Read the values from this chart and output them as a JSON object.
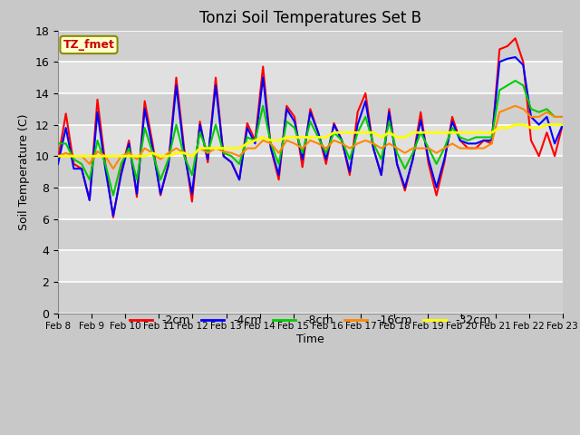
{
  "title": "Tonzi Soil Temperatures Set B",
  "xlabel": "Time",
  "ylabel": "Soil Temperature (C)",
  "ylim": [
    0,
    18
  ],
  "yticks": [
    0,
    2,
    4,
    6,
    8,
    10,
    12,
    14,
    16,
    18
  ],
  "x_labels": [
    "Feb 8",
    "Feb 9",
    "Feb 10",
    "Feb 11",
    "Feb 12",
    "Feb 13",
    "Feb 14",
    "Feb 15",
    "Feb 16",
    "Feb 17",
    "Feb 18",
    "Feb 19",
    "Feb 20",
    "Feb 21",
    "Feb 22",
    "Feb 23"
  ],
  "annotation_text": "TZ_fmet",
  "annotation_bg": "#ffffcc",
  "annotation_border": "#8b8b00",
  "annotation_color": "#cc0000",
  "outer_bg": "#c8c8c8",
  "plot_bg_upper": "#d8d8d8",
  "plot_bg_lower": "#e8e8e8",
  "grid_color": "#ffffff",
  "legend_bg": "#ffffff",
  "series": [
    {
      "label": "-2cm",
      "color": "#ff0000",
      "linewidth": 1.5,
      "y": [
        9.8,
        12.7,
        9.5,
        9.2,
        7.2,
        13.6,
        9.5,
        6.1,
        9.0,
        11.0,
        7.4,
        13.5,
        10.8,
        7.5,
        9.5,
        15.0,
        10.5,
        7.1,
        12.2,
        9.6,
        15.0,
        10.0,
        9.6,
        8.5,
        12.1,
        11.0,
        15.7,
        10.5,
        8.5,
        13.2,
        12.5,
        9.3,
        13.0,
        11.5,
        9.5,
        12.1,
        11.0,
        8.8,
        12.8,
        14.0,
        10.5,
        8.8,
        13.0,
        9.5,
        7.8,
        9.8,
        12.8,
        9.5,
        7.5,
        9.6,
        12.5,
        11.0,
        10.5,
        10.5,
        11.0,
        10.8,
        16.8,
        17.0,
        17.5,
        16.0,
        11.0,
        10.0,
        11.5,
        10.0,
        12.0
      ]
    },
    {
      "label": "-4cm",
      "color": "#0000ff",
      "linewidth": 1.5,
      "y": [
        9.5,
        11.8,
        9.2,
        9.2,
        7.2,
        12.8,
        9.2,
        6.2,
        8.8,
        10.8,
        7.6,
        13.0,
        10.5,
        7.6,
        9.4,
        14.5,
        10.2,
        7.6,
        12.0,
        9.8,
        14.5,
        10.0,
        9.6,
        8.5,
        11.8,
        10.8,
        15.0,
        10.5,
        8.8,
        13.0,
        12.2,
        9.8,
        12.8,
        11.5,
        9.8,
        12.0,
        11.0,
        9.0,
        12.0,
        13.5,
        10.5,
        8.8,
        12.8,
        9.5,
        8.0,
        9.8,
        12.3,
        9.8,
        8.0,
        9.8,
        12.2,
        11.0,
        10.8,
        10.8,
        11.0,
        11.0,
        16.0,
        16.2,
        16.3,
        15.8,
        12.5,
        12.0,
        12.5,
        10.8,
        12.0
      ]
    },
    {
      "label": "-8cm",
      "color": "#00cc00",
      "linewidth": 1.5,
      "y": [
        10.8,
        10.8,
        9.8,
        9.5,
        8.5,
        11.0,
        9.5,
        7.5,
        9.5,
        10.5,
        8.5,
        11.8,
        10.2,
        8.5,
        9.8,
        12.0,
        10.0,
        8.8,
        11.5,
        10.2,
        12.0,
        10.2,
        10.0,
        9.5,
        11.2,
        11.0,
        13.2,
        10.8,
        9.5,
        12.2,
        11.8,
        10.2,
        12.2,
        11.2,
        10.2,
        11.5,
        11.0,
        9.8,
        11.5,
        12.5,
        10.8,
        9.8,
        12.2,
        10.2,
        9.2,
        10.2,
        11.5,
        10.5,
        9.5,
        10.5,
        11.8,
        11.2,
        11.0,
        11.2,
        11.2,
        11.2,
        14.2,
        14.5,
        14.8,
        14.5,
        13.0,
        12.8,
        13.0,
        12.5,
        12.5
      ]
    },
    {
      "label": "-16cm",
      "color": "#ff8800",
      "linewidth": 1.5,
      "y": [
        10.0,
        10.2,
        10.0,
        10.0,
        9.5,
        10.3,
        10.0,
        9.2,
        10.0,
        10.2,
        9.8,
        10.5,
        10.2,
        9.8,
        10.2,
        10.5,
        10.2,
        10.0,
        10.5,
        10.2,
        10.5,
        10.3,
        10.2,
        10.0,
        10.5,
        10.5,
        11.0,
        10.8,
        10.2,
        11.0,
        10.8,
        10.5,
        11.0,
        10.8,
        10.5,
        11.0,
        10.8,
        10.5,
        10.8,
        11.0,
        10.8,
        10.5,
        10.8,
        10.5,
        10.2,
        10.5,
        10.5,
        10.5,
        10.2,
        10.5,
        10.8,
        10.5,
        10.5,
        10.5,
        10.5,
        10.8,
        12.8,
        13.0,
        13.2,
        13.0,
        12.5,
        12.5,
        12.8,
        12.5,
        12.5
      ]
    },
    {
      "label": "-32cm",
      "color": "#ffff00",
      "linewidth": 2.0,
      "y": [
        10.0,
        10.0,
        10.0,
        10.0,
        10.0,
        10.0,
        10.0,
        10.0,
        10.0,
        10.0,
        10.0,
        10.0,
        10.2,
        10.0,
        10.0,
        10.2,
        10.2,
        10.0,
        10.5,
        10.5,
        10.5,
        10.5,
        10.5,
        10.5,
        10.8,
        11.0,
        11.2,
        11.0,
        11.0,
        11.2,
        11.2,
        11.2,
        11.2,
        11.2,
        11.2,
        11.5,
        11.5,
        11.5,
        11.5,
        11.5,
        11.5,
        11.2,
        11.5,
        11.2,
        11.2,
        11.5,
        11.5,
        11.5,
        11.5,
        11.5,
        11.5,
        11.5,
        11.5,
        11.5,
        11.5,
        11.5,
        11.8,
        11.8,
        12.0,
        12.0,
        11.8,
        11.8,
        12.0,
        12.0,
        12.0
      ]
    }
  ]
}
